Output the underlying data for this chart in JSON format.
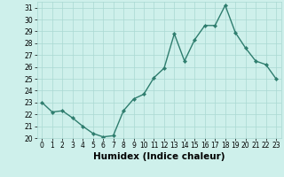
{
  "x": [
    0,
    1,
    2,
    3,
    4,
    5,
    6,
    7,
    8,
    9,
    10,
    11,
    12,
    13,
    14,
    15,
    16,
    17,
    18,
    19,
    20,
    21,
    22,
    23
  ],
  "y": [
    23.0,
    22.2,
    22.3,
    21.7,
    21.0,
    20.4,
    20.1,
    20.2,
    22.3,
    23.3,
    23.7,
    25.1,
    25.9,
    28.8,
    26.5,
    28.3,
    29.5,
    29.5,
    31.2,
    28.9,
    27.6,
    26.5,
    26.2,
    25.0
  ],
  "line_color": "#2e7d6e",
  "marker": "D",
  "marker_size": 2.2,
  "linewidth": 1.0,
  "bg_color": "#cef0eb",
  "grid_color": "#aad8d2",
  "xlabel": "Humidex (Indice chaleur)",
  "xlim": [
    -0.5,
    23.5
  ],
  "ylim": [
    20,
    31.5
  ],
  "yticks": [
    20,
    21,
    22,
    23,
    24,
    25,
    26,
    27,
    28,
    29,
    30,
    31
  ],
  "xticks": [
    0,
    1,
    2,
    3,
    4,
    5,
    6,
    7,
    8,
    9,
    10,
    11,
    12,
    13,
    14,
    15,
    16,
    17,
    18,
    19,
    20,
    21,
    22,
    23
  ],
  "tick_fontsize": 5.5,
  "xlabel_fontsize": 7.5
}
